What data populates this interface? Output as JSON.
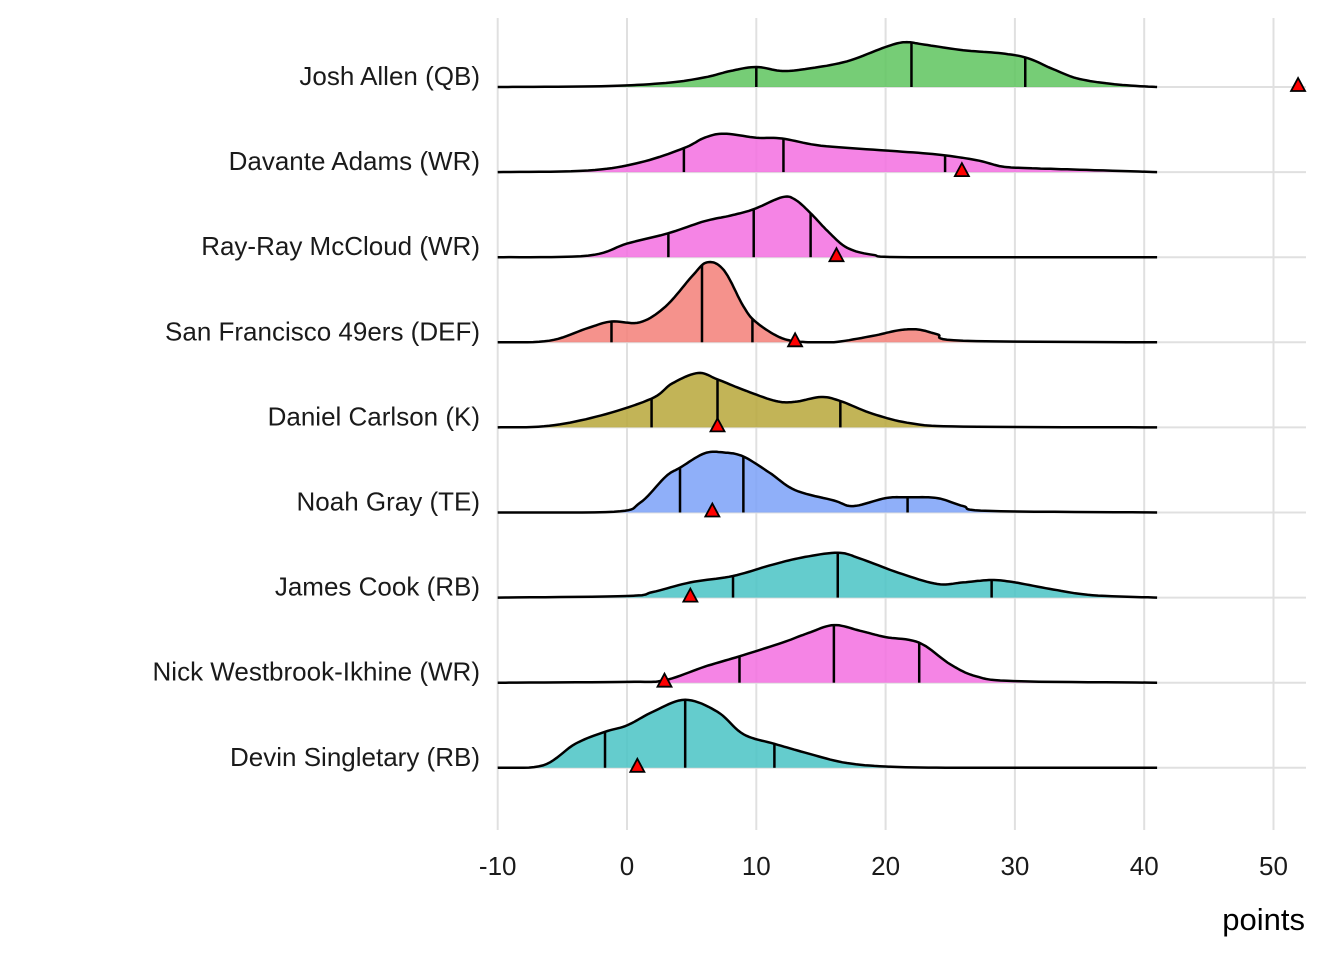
{
  "chart_data": {
    "type": "ridgeline",
    "title": "",
    "xlabel": "points",
    "ylabel": "",
    "xlim": [
      -10,
      52
    ],
    "x_ticks": [
      -10,
      0,
      10,
      20,
      30,
      40,
      50
    ],
    "grid": true,
    "density_range": [
      -10,
      41
    ],
    "marker": {
      "shape": "triangle",
      "color": "#ff0000",
      "meaning": "actual points"
    },
    "series": [
      {
        "name": "Josh Allen (QB)",
        "color": "#5ec45e",
        "quantiles": [
          10.0,
          22.0,
          30.8
        ],
        "actual": 51.9,
        "density": [
          [
            -10,
            0
          ],
          [
            -2,
            0.01
          ],
          [
            3,
            0.05
          ],
          [
            6,
            0.12
          ],
          [
            8,
            0.2
          ],
          [
            10,
            0.25
          ],
          [
            12,
            0.2
          ],
          [
            14,
            0.23
          ],
          [
            17,
            0.32
          ],
          [
            20,
            0.5
          ],
          [
            21.5,
            0.56
          ],
          [
            23,
            0.53
          ],
          [
            26,
            0.46
          ],
          [
            29,
            0.42
          ],
          [
            31,
            0.36
          ],
          [
            33,
            0.22
          ],
          [
            35,
            0.1
          ],
          [
            38,
            0.03
          ],
          [
            41,
            0
          ]
        ]
      },
      {
        "name": "Davante Adams (WR)",
        "color": "#f36fe1",
        "quantiles": [
          4.4,
          12.1,
          24.6
        ],
        "actual": 25.9,
        "density": [
          [
            -10,
            0
          ],
          [
            -3,
            0.02
          ],
          [
            1,
            0.12
          ],
          [
            4.4,
            0.3
          ],
          [
            6,
            0.43
          ],
          [
            7.5,
            0.48
          ],
          [
            10,
            0.43
          ],
          [
            12,
            0.42
          ],
          [
            15,
            0.33
          ],
          [
            20,
            0.27
          ],
          [
            24,
            0.22
          ],
          [
            27,
            0.15
          ],
          [
            29,
            0.07
          ],
          [
            31,
            0.05
          ],
          [
            35,
            0.03
          ],
          [
            41,
            0
          ]
        ]
      },
      {
        "name": "Ray-Ray McCloud (WR)",
        "color": "#f36fe1",
        "quantiles": [
          3.2,
          9.8,
          14.2
        ],
        "actual": 16.2,
        "density": [
          [
            -10,
            0
          ],
          [
            -3,
            0.02
          ],
          [
            0,
            0.17
          ],
          [
            3.2,
            0.3
          ],
          [
            6,
            0.45
          ],
          [
            8,
            0.52
          ],
          [
            9.8,
            0.6
          ],
          [
            12,
            0.75
          ],
          [
            13,
            0.72
          ],
          [
            14.2,
            0.55
          ],
          [
            15.5,
            0.33
          ],
          [
            17,
            0.12
          ],
          [
            19,
            0.03
          ],
          [
            22,
            0
          ],
          [
            41,
            0
          ]
        ]
      },
      {
        "name": "San Francisco 49ers (DEF)",
        "color": "#f37f78",
        "quantiles": [
          -1.2,
          5.8,
          9.7
        ],
        "actual": 13.0,
        "density": [
          [
            -10,
            0
          ],
          [
            -6,
            0.02
          ],
          [
            -3,
            0.18
          ],
          [
            -1.2,
            0.26
          ],
          [
            1,
            0.25
          ],
          [
            3,
            0.45
          ],
          [
            5,
            0.82
          ],
          [
            6.2,
            1.0
          ],
          [
            7.5,
            0.9
          ],
          [
            9,
            0.45
          ],
          [
            10,
            0.25
          ],
          [
            12,
            0.05
          ],
          [
            14,
            0
          ],
          [
            16,
            0
          ],
          [
            19,
            0.08
          ],
          [
            21,
            0.15
          ],
          [
            22.5,
            0.16
          ],
          [
            24,
            0.1
          ],
          [
            26,
            0.02
          ],
          [
            41,
            0
          ]
        ]
      },
      {
        "name": "Daniel Carlson (K)",
        "color": "#b7a73a",
        "quantiles": [
          1.9,
          7.0,
          16.5
        ],
        "actual": 7.0,
        "density": [
          [
            -10,
            0
          ],
          [
            -6,
            0.02
          ],
          [
            -2,
            0.15
          ],
          [
            1.9,
            0.36
          ],
          [
            3.5,
            0.55
          ],
          [
            5.5,
            0.68
          ],
          [
            7,
            0.6
          ],
          [
            9,
            0.47
          ],
          [
            11.5,
            0.33
          ],
          [
            13,
            0.32
          ],
          [
            15,
            0.38
          ],
          [
            16.5,
            0.33
          ],
          [
            19,
            0.17
          ],
          [
            22,
            0.05
          ],
          [
            26,
            0.01
          ],
          [
            41,
            0
          ]
        ]
      },
      {
        "name": "Noah Gray (TE)",
        "color": "#7ba1f8",
        "quantiles": [
          4.1,
          9.0,
          21.7
        ],
        "actual": 6.6,
        "density": [
          [
            -10,
            0
          ],
          [
            -1,
            0.01
          ],
          [
            1,
            0.12
          ],
          [
            3,
            0.45
          ],
          [
            4.1,
            0.56
          ],
          [
            6,
            0.74
          ],
          [
            7.5,
            0.75
          ],
          [
            9,
            0.7
          ],
          [
            11,
            0.5
          ],
          [
            13,
            0.28
          ],
          [
            16,
            0.15
          ],
          [
            17.5,
            0.08
          ],
          [
            20,
            0.18
          ],
          [
            21.7,
            0.19
          ],
          [
            24,
            0.18
          ],
          [
            26,
            0.08
          ],
          [
            28,
            0.02
          ],
          [
            41,
            0
          ]
        ]
      },
      {
        "name": "James Cook (RB)",
        "color": "#49c3c4",
        "quantiles": [
          8.2,
          16.3,
          28.2
        ],
        "actual": 4.9,
        "density": [
          [
            -10,
            0
          ],
          [
            0,
            0.02
          ],
          [
            2,
            0.07
          ],
          [
            4.9,
            0.19
          ],
          [
            8.2,
            0.27
          ],
          [
            11,
            0.4
          ],
          [
            13.5,
            0.5
          ],
          [
            16.3,
            0.56
          ],
          [
            18,
            0.49
          ],
          [
            21,
            0.31
          ],
          [
            24,
            0.17
          ],
          [
            26,
            0.19
          ],
          [
            28.2,
            0.22
          ],
          [
            30,
            0.19
          ],
          [
            33,
            0.1
          ],
          [
            36,
            0.03
          ],
          [
            41,
            0
          ]
        ]
      },
      {
        "name": "Nick Westbrook-Ikhine (WR)",
        "color": "#f36fe1",
        "quantiles": [
          8.7,
          16.0,
          22.6
        ],
        "actual": 2.9,
        "density": [
          [
            -10,
            0
          ],
          [
            0,
            0.01
          ],
          [
            2.9,
            0.03
          ],
          [
            6,
            0.2
          ],
          [
            8.7,
            0.33
          ],
          [
            12,
            0.5
          ],
          [
            14,
            0.62
          ],
          [
            16,
            0.72
          ],
          [
            18,
            0.65
          ],
          [
            20,
            0.57
          ],
          [
            22.6,
            0.5
          ],
          [
            25,
            0.23
          ],
          [
            27,
            0.08
          ],
          [
            30,
            0.02
          ],
          [
            41,
            0
          ]
        ]
      },
      {
        "name": "Devin Singletary (RB)",
        "color": "#49c3c4",
        "quantiles": [
          -1.7,
          4.5,
          11.4
        ],
        "actual": 0.8,
        "density": [
          [
            -10,
            0
          ],
          [
            -6.5,
            0.03
          ],
          [
            -4,
            0.3
          ],
          [
            -1.7,
            0.45
          ],
          [
            0,
            0.53
          ],
          [
            2,
            0.7
          ],
          [
            4.5,
            0.85
          ],
          [
            7,
            0.7
          ],
          [
            9,
            0.42
          ],
          [
            11.4,
            0.3
          ],
          [
            14,
            0.18
          ],
          [
            17,
            0.06
          ],
          [
            21,
            0.01
          ],
          [
            28,
            0
          ],
          [
            41,
            0
          ]
        ]
      }
    ]
  }
}
